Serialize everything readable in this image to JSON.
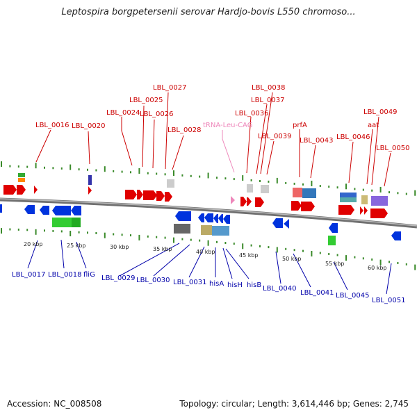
{
  "title": "Leptospira borgpetersenii serovar Hardjo-bovis L550 chromoso...",
  "footer": {
    "accession": "Accession: NC_008508",
    "summary": "Topology: circular; Length: 3,614,446 bp; Genes: 2,745"
  },
  "colors": {
    "forward_label": "#cc0000",
    "reverse_label": "#0000aa",
    "trna_label": "#ee88bb",
    "backbone": "#888888",
    "tick": "#3a8a2a"
  },
  "scale_ticks": [
    "20 kbp",
    "25 kbp",
    "30 kbp",
    "35 kbp",
    "40 kbp",
    "45 kbp",
    "50 kbp",
    "55 kbp",
    "60 kbp"
  ],
  "forward_labels": [
    "LBL_0016",
    "LBL_0020",
    "LBL_0024",
    "LBL_0025",
    "LBL_0026",
    "LBL_0027",
    "LBL_0028",
    "tRNA-Leu-CAG",
    "LBL_0036",
    "LBL_0037",
    "LBL_0038",
    "LBL_0039",
    "prfA",
    "LBL_0043",
    "LBL_0046",
    "aat",
    "LBL_0049",
    "LBL_0050"
  ],
  "reverse_labels": [
    "LBL_0017",
    "LBL_0018",
    "fliG",
    "LBL_0029",
    "LBL_0030",
    "LBL_0031",
    "hisA",
    "hisH",
    "hisB",
    "LBL_0040",
    "LBL_0041",
    "LBL_0045",
    "LBL_0051"
  ]
}
